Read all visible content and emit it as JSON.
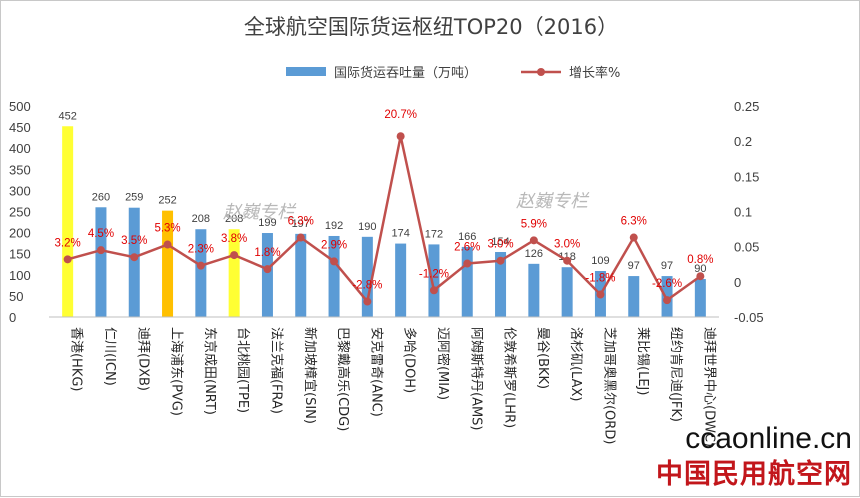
{
  "chart_data": {
    "type": "bar+line",
    "title": "全球航空国际货运枢纽TOP20（2016）",
    "legend": {
      "bar": "国际货运吞吐量（万吨）",
      "line": "增长率%"
    },
    "legend_position": "top",
    "categories": [
      "香港(HKG)",
      "仁川(ICN)",
      "迪拜(DXB)",
      "上海浦东(PVG)",
      "东京成田(NRT)",
      "台北桃园(TPE)",
      "法兰克福(FRA)",
      "新加坡樟宜(SIN)",
      "巴黎戴高乐(CDG)",
      "安克雷奇(ANC)",
      "多哈(DOH)",
      "迈阿密(MIA)",
      "阿姆斯特丹(AMS)",
      "伦敦希斯罗(LHR)",
      "曼谷(BKK)",
      "洛杉矶(LAX)",
      "芝加哥奥黑尔(ORD)",
      "莱比锡(LEJ)",
      "纽约肯尼迪(JFK)",
      "迪拜世界中心(DWC)"
    ],
    "series": [
      {
        "name": "国际货运吞吐量（万吨）",
        "type": "bar",
        "axis": "left",
        "values": [
          452,
          260,
          259,
          252,
          208,
          208,
          199,
          197,
          192,
          190,
          174,
          172,
          166,
          154,
          126,
          118,
          109,
          97,
          97,
          90
        ],
        "value_labels": [
          "452",
          "260",
          "259",
          "252",
          "208",
          "208",
          "199",
          "197",
          "192",
          "190",
          "174",
          "172",
          "166",
          "154",
          "126",
          "118",
          "109",
          "97",
          "97",
          "90"
        ],
        "colors": [
          "#ffff33",
          "#5b9bd5",
          "#5b9bd5",
          "#ffc000",
          "#5b9bd5",
          "#ffff33",
          "#5b9bd5",
          "#5b9bd5",
          "#5b9bd5",
          "#5b9bd5",
          "#5b9bd5",
          "#5b9bd5",
          "#5b9bd5",
          "#5b9bd5",
          "#5b9bd5",
          "#5b9bd5",
          "#5b9bd5",
          "#5b9bd5",
          "#5b9bd5",
          "#5b9bd5"
        ]
      },
      {
        "name": "增长率%",
        "type": "line",
        "axis": "right",
        "values": [
          0.032,
          0.045,
          0.035,
          0.053,
          0.023,
          0.038,
          0.018,
          0.063,
          0.029,
          -0.028,
          0.207,
          -0.012,
          0.026,
          0.03,
          0.059,
          0.03,
          -0.018,
          0.063,
          -0.026,
          0.008
        ],
        "value_labels": [
          "3.2%",
          "4.5%",
          "3.5%",
          "5.3%",
          "2.3%",
          "3.8%",
          "1.8%",
          "6.3%",
          "2.9%",
          "-2.8%",
          "20.7%",
          "-1.2%",
          "2.6%",
          "3.0%",
          "5.9%",
          "3.0%",
          "-1.8%",
          "6.3%",
          "-2.6%",
          "0.8%"
        ],
        "color": "#c0504d"
      }
    ],
    "y_left": {
      "min": 0,
      "max": 500,
      "ticks": [
        "0",
        "50",
        "100",
        "150",
        "200",
        "250",
        "300",
        "350",
        "400",
        "450",
        "500"
      ]
    },
    "y_right": {
      "min": -0.05,
      "max": 0.25,
      "ticks": [
        "-0.05",
        "0",
        "0.05",
        "0.1",
        "0.15",
        "0.2",
        "0.25"
      ]
    },
    "grid": false
  },
  "watermark": "赵巍专栏",
  "branding": {
    "site": "ccaonline.cn",
    "name": "中国民用航空网"
  },
  "colors": {
    "bar": "#5b9bd5",
    "line": "#c0504d",
    "rate_label": "#e00000"
  }
}
